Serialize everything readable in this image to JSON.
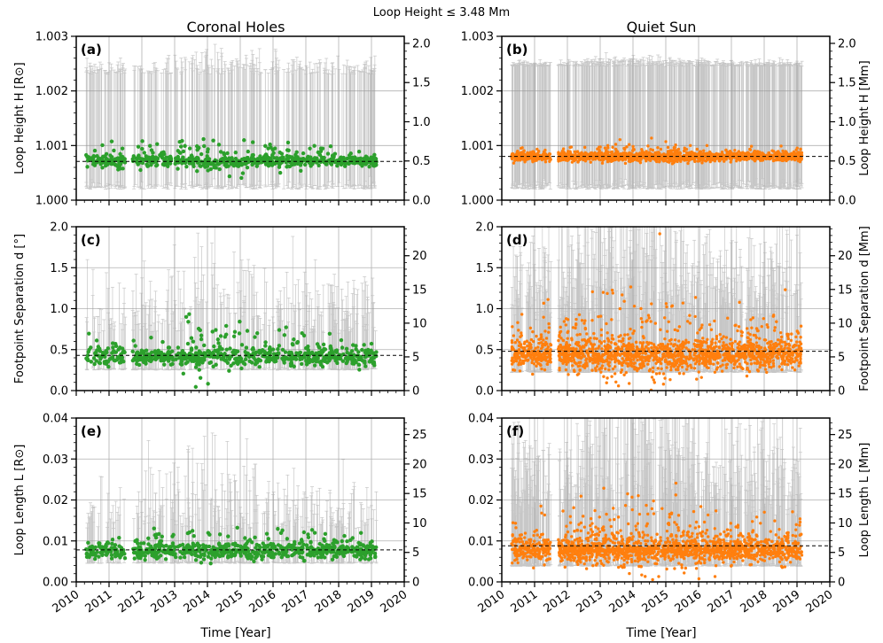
{
  "figure": {
    "suptitle": "Loop Height ≤ 3.48 Mm",
    "xlabel": "Time [Year]"
  },
  "colors": {
    "ch": "#2ca02c",
    "qs": "#ff7f0e",
    "err": "#999999",
    "grid": "#b0b0b0"
  },
  "chart_data": [
    {
      "id": "a",
      "panel_label": "(a)",
      "type": "scatter",
      "column_title": "Coronal Holes",
      "ylabel_left": "Loop Height H [R⊙]",
      "ylabel_right": "",
      "xlim": [
        2010,
        2020
      ],
      "ylim": [
        1.0,
        1.003
      ],
      "ylim_right": [
        0,
        2.09
      ],
      "yticks": [
        "1.000",
        "1.001",
        "1.002",
        "1.003"
      ],
      "yticks_right": [
        "0.0",
        "0.5",
        "1.0",
        "1.5",
        "2.0"
      ],
      "x_range": [
        2010.3,
        2019.15
      ],
      "median": 1.00071,
      "center": 1.00072,
      "spread": 5e-05,
      "outlier_spread": 0.00022,
      "outlier_frac": 0.35,
      "err_low": 1.0002,
      "err_high": 1.0023,
      "err_high_spread": 0.00015,
      "n_points": 700,
      "n_err": 330,
      "gaps": [
        [
          2011.5,
          2011.72
        ],
        [
          2012.9,
          2013.0
        ]
      ],
      "seed": 11
    },
    {
      "id": "b",
      "panel_label": "(b)",
      "type": "scatter",
      "column_title": "Quiet Sun",
      "ylabel_left": "",
      "ylabel_right": "Loop Height H [Mm]",
      "xlim": [
        2010,
        2020
      ],
      "ylim": [
        1.0,
        1.003
      ],
      "ylim_right": [
        0,
        2.09
      ],
      "yticks": [
        "1.000",
        "1.001",
        "1.002",
        "1.003"
      ],
      "yticks_right": [
        "0.0",
        "0.5",
        "1.0",
        "1.5",
        "2.0"
      ],
      "x_range": [
        2010.3,
        2019.15
      ],
      "median": 1.0008,
      "center": 1.0008,
      "spread": 4e-05,
      "outlier_spread": 0.00013,
      "outlier_frac": 0.25,
      "err_low": 1.0002,
      "err_high": 1.00245,
      "err_high_spread": 5e-05,
      "n_points": 1600,
      "n_err": 650,
      "gaps": [
        [
          2011.5,
          2011.72
        ]
      ],
      "seed": 22
    },
    {
      "id": "c",
      "panel_label": "(c)",
      "type": "scatter",
      "ylabel_left": "Footpoint Separation d [°]",
      "ylabel_right": "",
      "xlim": [
        2010,
        2020
      ],
      "ylim": [
        0,
        2.0
      ],
      "ylim_right": [
        0,
        24.3
      ],
      "yticks": [
        "0.0",
        "0.5",
        "1.0",
        "1.5",
        "2.0"
      ],
      "yticks_right": [
        "0",
        "5",
        "10",
        "15",
        "20"
      ],
      "x_range": [
        2010.3,
        2019.15
      ],
      "median": 0.43,
      "center": 0.42,
      "spread": 0.05,
      "outlier_spread": 0.22,
      "outlier_frac": 0.3,
      "err_low": 0.25,
      "err_high": 0.7,
      "err_high_spread": 0.35,
      "n_points": 720,
      "n_err": 330,
      "gaps": [
        [
          2011.5,
          2011.72
        ]
      ],
      "seed": 33
    },
    {
      "id": "d",
      "panel_label": "(d)",
      "type": "scatter",
      "ylabel_left": "",
      "ylabel_right": "Footpoint Separation d [Mm]",
      "xlim": [
        2010,
        2020
      ],
      "ylim": [
        0,
        2.0
      ],
      "ylim_right": [
        0,
        24.3
      ],
      "yticks": [
        "0.0",
        "0.5",
        "1.0",
        "1.5",
        "2.0"
      ],
      "yticks_right": [
        "0",
        "5",
        "10",
        "15",
        "20"
      ],
      "x_range": [
        2010.3,
        2019.15
      ],
      "median": 0.48,
      "center": 0.45,
      "spread": 0.08,
      "outlier_spread": 0.38,
      "outlier_frac": 0.45,
      "err_low": 0.22,
      "err_high": 0.85,
      "err_high_spread": 0.6,
      "n_points": 1700,
      "n_err": 700,
      "gaps": [
        [
          2011.5,
          2011.72
        ]
      ],
      "seed": 44
    },
    {
      "id": "e",
      "panel_label": "(e)",
      "type": "scatter",
      "ylabel_left": "Loop Length L [R⊙]",
      "ylabel_right": "",
      "xlim": [
        2010,
        2020
      ],
      "ylim": [
        0,
        0.04
      ],
      "ylim_right": [
        0,
        27.8
      ],
      "yticks": [
        "0.00",
        "0.01",
        "0.02",
        "0.03",
        "0.04"
      ],
      "yticks_right": [
        "0",
        "5",
        "10",
        "15",
        "20",
        "25"
      ],
      "x_range": [
        2010.3,
        2019.15
      ],
      "median": 0.0078,
      "center": 0.0076,
      "spread": 0.0009,
      "outlier_spread": 0.0035,
      "outlier_frac": 0.3,
      "err_low": 0.0045,
      "err_high": 0.013,
      "err_high_spread": 0.006,
      "n_points": 720,
      "n_err": 330,
      "gaps": [
        [
          2011.5,
          2011.72
        ]
      ],
      "seed": 55
    },
    {
      "id": "f",
      "panel_label": "(f)",
      "type": "scatter",
      "ylabel_left": "",
      "ylabel_right": "Loop Length L [Mm]",
      "xlim": [
        2010,
        2020
      ],
      "ylim": [
        0,
        0.04
      ],
      "ylim_right": [
        0,
        27.8
      ],
      "yticks": [
        "0.00",
        "0.01",
        "0.02",
        "0.03",
        "0.04"
      ],
      "yticks_right": [
        "0",
        "5",
        "10",
        "15",
        "20",
        "25"
      ],
      "x_range": [
        2010.3,
        2019.15
      ],
      "median": 0.0088,
      "center": 0.008,
      "spread": 0.0013,
      "outlier_spread": 0.006,
      "outlier_frac": 0.45,
      "err_low": 0.0038,
      "err_high": 0.016,
      "err_high_spread": 0.012,
      "n_points": 1700,
      "n_err": 700,
      "gaps": [
        [
          2011.5,
          2011.72
        ]
      ],
      "seed": 66
    }
  ],
  "x_ticks": [
    "2010",
    "2011",
    "2012",
    "2013",
    "2014",
    "2015",
    "2016",
    "2017",
    "2018",
    "2019",
    "2020"
  ]
}
